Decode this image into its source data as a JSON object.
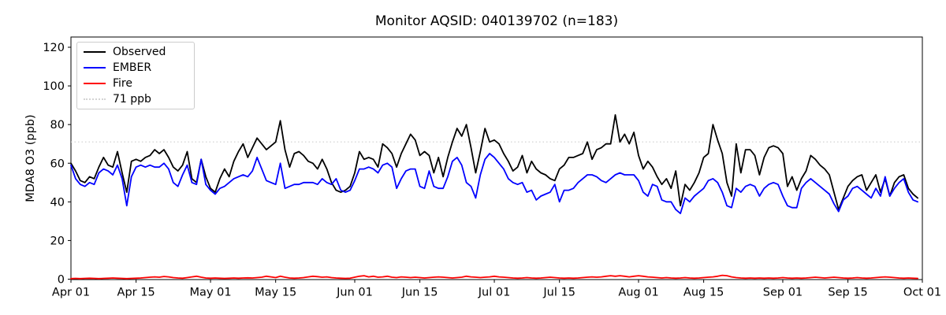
{
  "figure": {
    "title": "Monitor AQSID: 040139702 (n=183)",
    "ylabel": "MDA8 O3 (ppb)",
    "background_color": "#ffffff"
  },
  "legend": {
    "position": "upper left",
    "items": [
      {
        "label": "Observed"
      },
      {
        "label": "EMBER"
      },
      {
        "label": "Fire"
      },
      {
        "label": "71 ppb"
      }
    ]
  },
  "chart_data": {
    "type": "line",
    "title": "Monitor AQSID: 040139702 (n=183)",
    "xlabel": "",
    "ylabel": "MDA8 O3 (ppb)",
    "n_points": 183,
    "x_unit": "day, Apr 01 through Sep 30",
    "x_tick_labels": [
      "Apr 01",
      "Apr 15",
      "May 01",
      "May 15",
      "Jun 01",
      "Jun 15",
      "Jul 01",
      "Jul 15",
      "Aug 01",
      "Aug 15",
      "Sep 01",
      "Sep 15",
      "Oct 01"
    ],
    "x_tick_day_index": [
      0,
      14,
      30,
      44,
      61,
      75,
      91,
      105,
      122,
      136,
      153,
      167,
      183
    ],
    "y_ticks": [
      0,
      20,
      40,
      60,
      80,
      100,
      120
    ],
    "ylim": [
      0,
      125.3
    ],
    "grid": false,
    "threshold": {
      "value": 71,
      "label": "71 ppb",
      "color": "#d3d3d3",
      "linestyle": "dotted"
    },
    "series": [
      {
        "name": "Observed",
        "color": "#000000",
        "values": [
          60,
          56,
          51,
          50,
          53,
          52,
          58,
          63,
          59,
          58,
          66,
          55,
          45,
          61,
          62,
          61,
          63,
          64,
          67,
          65,
          67,
          63,
          58,
          56,
          59,
          66,
          52,
          50,
          62,
          53,
          47,
          45,
          52,
          57,
          53,
          61,
          66,
          70,
          63,
          68,
          73,
          70,
          67,
          69,
          71,
          82,
          67,
          58,
          65,
          66,
          64,
          61,
          60,
          57,
          62,
          57,
          50,
          46,
          45,
          46,
          48,
          55,
          66,
          62,
          63,
          62,
          58,
          70,
          68,
          65,
          58,
          65,
          70,
          75,
          72,
          64,
          66,
          64,
          55,
          63,
          53,
          63,
          71,
          78,
          74,
          80,
          68,
          55,
          66,
          78,
          71,
          72,
          70,
          65,
          61,
          56,
          58,
          64,
          55,
          61,
          57,
          55,
          54,
          52,
          51,
          57,
          59,
          63,
          63,
          64,
          65,
          71,
          62,
          67,
          68,
          70,
          70,
          85,
          71,
          75,
          70,
          76,
          64,
          57,
          61,
          58,
          53,
          49,
          52,
          47,
          56,
          38,
          49,
          46,
          50,
          55,
          63,
          65,
          80,
          72,
          65,
          50,
          43,
          70,
          55,
          67,
          67,
          64,
          54,
          63,
          68,
          69,
          68,
          65,
          48,
          53,
          46,
          52,
          56,
          64,
          62,
          59,
          57,
          54,
          45,
          36,
          42,
          48,
          51,
          53,
          54,
          46,
          50,
          54,
          45,
          52,
          43,
          50,
          53,
          54,
          47,
          44,
          42
        ]
      },
      {
        "name": "EMBER",
        "color": "#0000ff",
        "values": [
          59,
          52,
          49,
          48,
          50,
          49,
          55,
          57,
          56,
          54,
          59,
          52,
          38,
          53,
          58,
          59,
          58,
          59,
          58,
          58,
          60,
          57,
          50,
          48,
          54,
          59,
          50,
          49,
          62,
          49,
          46,
          44,
          47,
          48,
          50,
          52,
          53,
          54,
          53,
          56,
          63,
          57,
          51,
          50,
          49,
          60,
          47,
          48,
          49,
          49,
          50,
          50,
          50,
          49,
          52,
          50,
          49,
          52,
          46,
          45,
          46,
          51,
          57,
          57,
          58,
          57,
          55,
          59,
          60,
          58,
          47,
          52,
          56,
          57,
          57,
          48,
          47,
          56,
          48,
          47,
          47,
          53,
          61,
          63,
          59,
          50,
          48,
          42,
          54,
          62,
          65,
          63,
          60,
          57,
          52,
          50,
          49,
          50,
          45,
          46,
          41,
          43,
          44,
          45,
          49,
          40,
          46,
          46,
          47,
          50,
          52,
          54,
          54,
          53,
          51,
          50,
          52,
          54,
          55,
          54,
          54,
          54,
          51,
          45,
          43,
          49,
          48,
          41,
          40,
          40,
          36,
          34,
          42,
          40,
          43,
          45,
          47,
          51,
          52,
          50,
          45,
          38,
          37,
          47,
          45,
          48,
          49,
          48,
          43,
          47,
          49,
          50,
          49,
          43,
          38,
          37,
          37,
          47,
          50,
          52,
          50,
          48,
          46,
          44,
          39,
          35,
          41,
          43,
          47,
          48,
          46,
          44,
          42,
          47,
          43,
          53,
          43,
          47,
          50,
          52,
          45,
          41,
          40
        ]
      },
      {
        "name": "Fire",
        "color": "#ff0000",
        "values": [
          0.3,
          0.4,
          0.3,
          0.4,
          0.5,
          0.4,
          0.3,
          0.4,
          0.5,
          0.6,
          0.5,
          0.4,
          0.3,
          0.4,
          0.5,
          0.6,
          0.8,
          1.0,
          1.2,
          1.0,
          1.4,
          1.2,
          0.8,
          0.6,
          0.5,
          0.8,
          1.2,
          1.5,
          1.0,
          0.6,
          0.5,
          0.6,
          0.5,
          0.4,
          0.5,
          0.6,
          0.5,
          0.6,
          0.7,
          0.6,
          0.8,
          1.0,
          1.5,
          1.2,
          0.8,
          1.5,
          1.0,
          0.6,
          0.5,
          0.6,
          0.8,
          1.2,
          1.5,
          1.3,
          1.0,
          1.2,
          0.8,
          0.6,
          0.5,
          0.4,
          0.5,
          1.0,
          1.5,
          1.8,
          1.2,
          1.5,
          1.0,
          1.2,
          1.5,
          1.0,
          0.8,
          1.2,
          1.0,
          0.8,
          1.0,
          0.8,
          0.6,
          0.8,
          1.0,
          1.2,
          1.0,
          0.8,
          0.6,
          0.8,
          1.0,
          1.5,
          1.2,
          1.0,
          0.8,
          1.0,
          1.2,
          1.5,
          1.2,
          1.0,
          0.8,
          0.6,
          0.5,
          0.6,
          0.8,
          0.6,
          0.5,
          0.6,
          0.8,
          1.0,
          0.8,
          0.6,
          0.5,
          0.6,
          0.5,
          0.6,
          0.8,
          1.0,
          1.2,
          1.0,
          1.2,
          1.5,
          1.8,
          1.5,
          1.8,
          1.5,
          1.2,
          1.5,
          1.8,
          1.5,
          1.2,
          1.0,
          0.8,
          0.6,
          0.8,
          0.6,
          0.5,
          0.6,
          0.8,
          0.6,
          0.5,
          0.6,
          0.8,
          1.0,
          1.2,
          1.5,
          2.0,
          1.8,
          1.2,
          0.8,
          0.6,
          0.5,
          0.6,
          0.5,
          0.6,
          0.5,
          0.6,
          0.5,
          0.6,
          0.8,
          0.6,
          0.5,
          0.6,
          0.5,
          0.6,
          0.8,
          1.0,
          0.8,
          0.6,
          0.8,
          1.0,
          0.8,
          0.6,
          0.5,
          0.6,
          0.8,
          0.6,
          0.5,
          0.6,
          0.8,
          1.0,
          1.2,
          1.0,
          0.8,
          0.6,
          0.5,
          0.6,
          0.5,
          0.4
        ]
      }
    ],
    "legend_position": "upper left"
  }
}
